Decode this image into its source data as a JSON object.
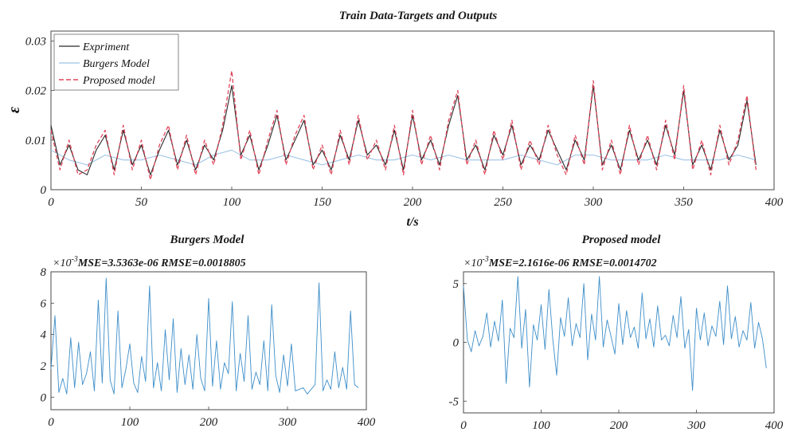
{
  "chart_data": [
    {
      "type": "line",
      "title": "Train Data-Targets and Outputs",
      "xlabel": "t/s",
      "ylabel": "ε",
      "xlim": [
        0,
        400
      ],
      "ylim": [
        0,
        0.032
      ],
      "x_ticks": [
        "0",
        "50",
        "100",
        "150",
        "200",
        "250",
        "300",
        "350",
        "400"
      ],
      "y_ticks": [
        "0",
        "0.01",
        "0.02",
        "0.03"
      ],
      "legend": {
        "location": "top-left",
        "entries": [
          "Expriment",
          "Burgers Model",
          "Proposed model"
        ]
      },
      "colors": {
        "Expriment": "#2b2b2b",
        "Burgers Model": "#9ec4e6",
        "Proposed model": "#e0455a"
      },
      "series": [
        {
          "name": "Expriment",
          "x": [
            0,
            5,
            10,
            15,
            20,
            25,
            30,
            35,
            40,
            45,
            50,
            55,
            60,
            65,
            70,
            75,
            80,
            85,
            90,
            95,
            100,
            105,
            110,
            115,
            120,
            125,
            130,
            135,
            140,
            145,
            150,
            155,
            160,
            165,
            170,
            175,
            180,
            185,
            190,
            195,
            200,
            205,
            210,
            215,
            220,
            225,
            230,
            235,
            240,
            245,
            250,
            255,
            260,
            265,
            270,
            275,
            280,
            285,
            290,
            295,
            300,
            305,
            310,
            315,
            320,
            325,
            330,
            335,
            340,
            345,
            350,
            355,
            360,
            365,
            370,
            375,
            380,
            385,
            390
          ],
          "y": [
            0.013,
            0.005,
            0.009,
            0.004,
            0.003,
            0.008,
            0.011,
            0.004,
            0.012,
            0.005,
            0.009,
            0.003,
            0.008,
            0.012,
            0.005,
            0.01,
            0.004,
            0.009,
            0.006,
            0.012,
            0.021,
            0.007,
            0.011,
            0.004,
            0.009,
            0.015,
            0.006,
            0.01,
            0.014,
            0.005,
            0.008,
            0.004,
            0.011,
            0.006,
            0.014,
            0.007,
            0.009,
            0.005,
            0.012,
            0.004,
            0.015,
            0.006,
            0.01,
            0.005,
            0.013,
            0.019,
            0.006,
            0.009,
            0.004,
            0.011,
            0.007,
            0.013,
            0.005,
            0.009,
            0.006,
            0.012,
            0.008,
            0.004,
            0.01,
            0.006,
            0.021,
            0.005,
            0.009,
            0.004,
            0.012,
            0.006,
            0.01,
            0.005,
            0.013,
            0.007,
            0.02,
            0.005,
            0.009,
            0.004,
            0.012,
            0.006,
            0.009,
            0.018,
            0.005
          ]
        },
        {
          "name": "Burgers Model",
          "x": [
            0,
            10,
            20,
            30,
            40,
            50,
            60,
            70,
            80,
            90,
            100,
            110,
            120,
            130,
            140,
            150,
            160,
            170,
            180,
            190,
            200,
            210,
            220,
            230,
            240,
            250,
            260,
            270,
            280,
            290,
            300,
            310,
            320,
            330,
            340,
            350,
            360,
            370,
            380,
            390
          ],
          "y": [
            0.008,
            0.006,
            0.005,
            0.007,
            0.006,
            0.006,
            0.007,
            0.006,
            0.005,
            0.007,
            0.008,
            0.006,
            0.006,
            0.007,
            0.006,
            0.005,
            0.006,
            0.007,
            0.006,
            0.006,
            0.007,
            0.006,
            0.007,
            0.006,
            0.006,
            0.006,
            0.007,
            0.006,
            0.005,
            0.007,
            0.007,
            0.006,
            0.006,
            0.006,
            0.007,
            0.006,
            0.006,
            0.006,
            0.007,
            0.006
          ]
        },
        {
          "name": "Proposed model",
          "x": [
            0,
            5,
            10,
            15,
            20,
            25,
            30,
            35,
            40,
            45,
            50,
            55,
            60,
            65,
            70,
            75,
            80,
            85,
            90,
            95,
            100,
            105,
            110,
            115,
            120,
            125,
            130,
            135,
            140,
            145,
            150,
            155,
            160,
            165,
            170,
            175,
            180,
            185,
            190,
            195,
            200,
            205,
            210,
            215,
            220,
            225,
            230,
            235,
            240,
            245,
            250,
            255,
            260,
            265,
            270,
            275,
            280,
            285,
            290,
            295,
            300,
            305,
            310,
            315,
            320,
            325,
            330,
            335,
            340,
            345,
            350,
            355,
            360,
            365,
            370,
            375,
            380,
            385,
            390
          ],
          "y": [
            0.012,
            0.004,
            0.01,
            0.003,
            0.004,
            0.009,
            0.012,
            0.003,
            0.013,
            0.004,
            0.01,
            0.002,
            0.009,
            0.013,
            0.004,
            0.011,
            0.003,
            0.01,
            0.005,
            0.013,
            0.024,
            0.006,
            0.012,
            0.003,
            0.01,
            0.016,
            0.005,
            0.011,
            0.015,
            0.004,
            0.009,
            0.003,
            0.012,
            0.005,
            0.015,
            0.006,
            0.01,
            0.004,
            0.013,
            0.003,
            0.016,
            0.005,
            0.011,
            0.004,
            0.014,
            0.02,
            0.005,
            0.01,
            0.003,
            0.012,
            0.006,
            0.014,
            0.004,
            0.01,
            0.005,
            0.013,
            0.007,
            0.003,
            0.011,
            0.005,
            0.022,
            0.004,
            0.01,
            0.003,
            0.013,
            0.005,
            0.011,
            0.004,
            0.014,
            0.006,
            0.021,
            0.004,
            0.01,
            0.003,
            0.013,
            0.005,
            0.01,
            0.019,
            0.004
          ]
        }
      ]
    },
    {
      "type": "line",
      "title": "Burgers Model",
      "annotation": "MSE=3.5363e-06  RMSE=0.0018805",
      "exponent_base": "×10",
      "exponent_power": "-3",
      "xlim": [
        0,
        400
      ],
      "ylim": [
        -0.8,
        8
      ],
      "x_ticks": [
        "0",
        "100",
        "200",
        "300",
        "400"
      ],
      "y_ticks": [
        "0",
        "2",
        "4",
        "6",
        "8"
      ],
      "color": "#3d8ec9",
      "series": [
        {
          "name": "",
          "x": [
            0,
            5,
            10,
            15,
            20,
            25,
            30,
            35,
            40,
            45,
            50,
            55,
            60,
            65,
            70,
            75,
            80,
            85,
            90,
            95,
            100,
            105,
            110,
            115,
            120,
            125,
            130,
            135,
            140,
            145,
            150,
            155,
            160,
            165,
            170,
            175,
            180,
            185,
            190,
            195,
            200,
            205,
            210,
            215,
            220,
            225,
            230,
            235,
            240,
            245,
            250,
            255,
            260,
            265,
            270,
            275,
            280,
            285,
            290,
            295,
            300,
            305,
            310,
            315,
            320,
            325,
            330,
            335,
            340,
            345,
            350,
            355,
            360,
            365,
            370,
            375,
            380,
            385,
            390
          ],
          "y": [
            1.8,
            5.2,
            0.3,
            1.2,
            0.2,
            3.8,
            0.6,
            3.5,
            0.8,
            1.5,
            2.9,
            0.4,
            6.2,
            0.9,
            7.6,
            1.1,
            0.2,
            5.5,
            0.6,
            1.8,
            3.4,
            0.9,
            0.3,
            2.6,
            1.0,
            7.1,
            0.6,
            2.2,
            0.4,
            4.3,
            1.1,
            5.0,
            0.3,
            3.1,
            0.8,
            2.7,
            0.5,
            4.0,
            1.2,
            0.4,
            6.3,
            0.7,
            3.6,
            0.5,
            2.2,
            1.5,
            6.1,
            0.4,
            2.8,
            1.0,
            5.2,
            0.5,
            1.6,
            0.8,
            3.6,
            0.4,
            5.9,
            1.4,
            0.3,
            2.7,
            0.7,
            3.4,
            0.4,
            0.5,
            0.6,
            0.2,
            0.5,
            0.8,
            7.3,
            0.4,
            1.1,
            0.5,
            2.9,
            0.6,
            1.9,
            0.5,
            5.5,
            0.8,
            0.6
          ]
        }
      ]
    },
    {
      "type": "line",
      "title": "Proposed model",
      "annotation": "MSE=2.1616e-06  RMSE=0.0014702",
      "exponent_base": "×10",
      "exponent_power": "-3",
      "xlim": [
        0,
        400
      ],
      "ylim": [
        -6,
        6
      ],
      "x_ticks": [
        "0",
        "100",
        "200",
        "300",
        "400"
      ],
      "y_ticks": [
        "-5",
        "0",
        "5"
      ],
      "color": "#3d8ec9",
      "series": [
        {
          "name": "",
          "x": [
            0,
            5,
            10,
            15,
            20,
            25,
            30,
            35,
            40,
            45,
            50,
            55,
            60,
            65,
            70,
            75,
            80,
            85,
            90,
            95,
            100,
            105,
            110,
            115,
            120,
            125,
            130,
            135,
            140,
            145,
            150,
            155,
            160,
            165,
            170,
            175,
            180,
            185,
            190,
            195,
            200,
            205,
            210,
            215,
            220,
            225,
            230,
            235,
            240,
            245,
            250,
            255,
            260,
            265,
            270,
            275,
            280,
            285,
            290,
            295,
            300,
            305,
            310,
            315,
            320,
            325,
            330,
            335,
            340,
            345,
            350,
            355,
            360,
            365,
            370,
            375,
            380,
            385,
            390
          ],
          "y": [
            4.8,
            0.2,
            -0.8,
            1.0,
            -0.3,
            0.5,
            2.5,
            -0.4,
            1.8,
            0.1,
            3.6,
            -3.5,
            1.2,
            0.4,
            5.6,
            -0.5,
            2.8,
            -3.8,
            1.5,
            0.2,
            3.2,
            -0.6,
            4.5,
            0.3,
            -2.8,
            2.1,
            0.5,
            3.8,
            -0.3,
            1.6,
            0.4,
            5.0,
            -1.5,
            2.4,
            0.2,
            5.6,
            -0.4,
            1.9,
            0.5,
            -1.0,
            3.3,
            -0.2,
            2.7,
            0.4,
            1.3,
            -0.5,
            4.2,
            0.3,
            2.0,
            -0.4,
            3.1,
            0.2,
            0.6,
            -0.3,
            2.3,
            0.4,
            3.9,
            -0.5,
            1.1,
            -4.1,
            2.9,
            0.2,
            2.5,
            -0.3,
            1.4,
            0.5,
            3.5,
            -0.2,
            4.8,
            0.3,
            2.2,
            -0.4,
            1.0,
            0.2,
            3.4,
            -0.5,
            1.7,
            0.3,
            -2.2
          ]
        }
      ]
    }
  ]
}
